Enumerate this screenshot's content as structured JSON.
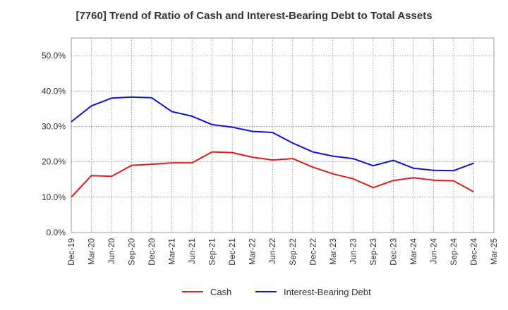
{
  "chart_data": {
    "type": "line",
    "title": "[7760]  Trend of Ratio of Cash and Interest-Bearing Debt to Total Assets",
    "xlabel": "",
    "ylabel": "",
    "categories": [
      "Dec-19",
      "Mar-20",
      "Jun-20",
      "Sep-20",
      "Dec-20",
      "Mar-21",
      "Jun-21",
      "Sep-21",
      "Dec-21",
      "Mar-22",
      "Jun-22",
      "Sep-22",
      "Dec-22",
      "Mar-23",
      "Jun-23",
      "Sep-23",
      "Dec-23",
      "Mar-24",
      "Jun-24",
      "Sep-24",
      "Dec-24",
      "Mar-25"
    ],
    "ylim": [
      0,
      55
    ],
    "yticks": [
      0,
      10,
      20,
      30,
      40,
      50
    ],
    "ytick_labels": [
      "0.0%",
      "10.0%",
      "20.0%",
      "30.0%",
      "40.0%",
      "50.0%"
    ],
    "grid": true,
    "legend_position": "bottom",
    "series": [
      {
        "name": "Cash",
        "color": "#e41a1c",
        "values": [
          10.0,
          16.1,
          15.9,
          19.0,
          19.3,
          19.7,
          19.7,
          22.8,
          22.6,
          21.3,
          20.5,
          20.9,
          18.5,
          16.6,
          15.2,
          12.7,
          14.7,
          15.5,
          14.8,
          14.6,
          11.5,
          null
        ]
      },
      {
        "name": "Interest-Bearing Debt",
        "color": "#1010dd",
        "values": [
          31.3,
          35.8,
          38.0,
          38.3,
          38.1,
          34.2,
          32.9,
          30.5,
          29.8,
          28.6,
          28.3,
          25.3,
          22.8,
          21.6,
          20.9,
          18.9,
          20.4,
          18.2,
          17.6,
          17.5,
          19.6,
          null
        ]
      }
    ]
  }
}
